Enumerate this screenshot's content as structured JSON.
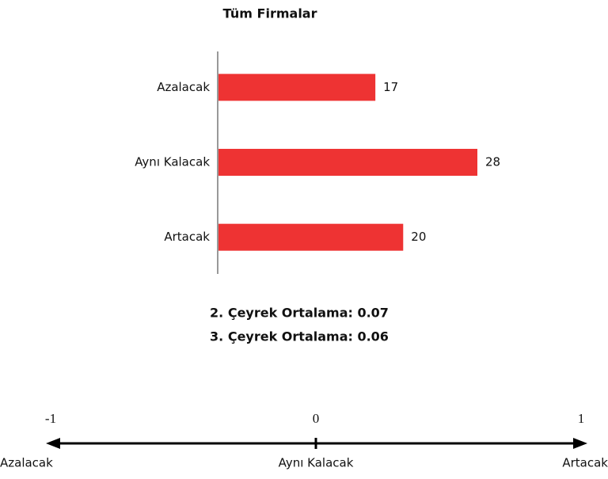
{
  "chart_data": {
    "type": "bar",
    "orientation": "horizontal",
    "title": "Tüm Firmalar",
    "categories": [
      "Azalacak",
      "Aynı Kalacak",
      "Artacak"
    ],
    "values": [
      17,
      28,
      20
    ],
    "color": "#ee3333",
    "annotations": [
      "2. Çeyrek Ortalama: 0.07",
      "3. Çeyrek Ortalama: 0.06"
    ],
    "scale": {
      "xlim": [
        -1,
        1
      ],
      "xticks": [
        -1,
        0,
        1
      ],
      "labels": [
        "Azalacak",
        "Aynı Kalacak",
        "Artacak"
      ]
    }
  }
}
